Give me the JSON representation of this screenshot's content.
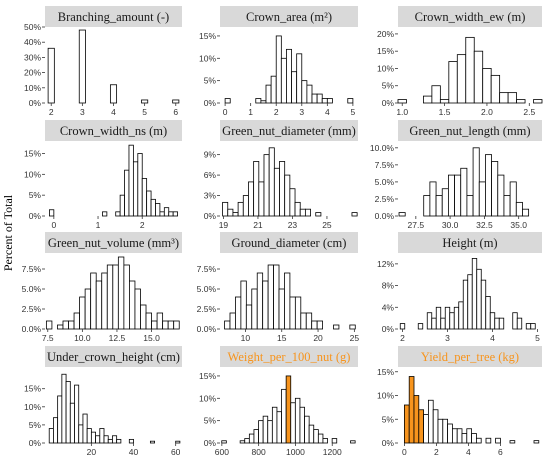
{
  "figure": {
    "ylabel": "Percent of Total",
    "panel_title_bg": "#d9d9d9",
    "bar_fill": "#ffffff",
    "bar_stroke": "#000000",
    "highlight_fill": "#f7941d",
    "highlight_title_color": "#f7941d"
  },
  "chart_data": [
    {
      "type": "bar",
      "title": "Branching_amount (-)",
      "xlim": [
        1.8,
        6.2
      ],
      "ylim": [
        0,
        50
      ],
      "xticks": [
        2,
        3,
        4,
        5,
        6
      ],
      "xtick_labels": [
        "2",
        "3",
        "4",
        "5",
        "6"
      ],
      "yticks": [
        0,
        10,
        20,
        30,
        40,
        50
      ],
      "ytick_labels": [
        "0%",
        "10%",
        "20%",
        "30%",
        "40%",
        "50%"
      ],
      "bin_width": 0.2,
      "bins": [
        {
          "x": 2,
          "y": 36
        },
        {
          "x": 3,
          "y": 48
        },
        {
          "x": 4,
          "y": 12
        },
        {
          "x": 5,
          "y": 2
        },
        {
          "x": 6,
          "y": 2
        }
      ]
    },
    {
      "type": "bar",
      "title": "Crown_area (m²)",
      "xlim": [
        -0.2,
        5.2
      ],
      "ylim": [
        0,
        17
      ],
      "xticks": [
        0,
        1,
        2,
        3,
        4,
        5
      ],
      "xtick_labels": [
        "0",
        "1",
        "2",
        "3",
        "4",
        "5"
      ],
      "yticks": [
        0,
        5,
        10,
        15
      ],
      "ytick_labels": [
        "0%",
        "5%",
        "10%",
        "15%"
      ],
      "bin_width": 0.2,
      "bins": [
        {
          "x": 0.1,
          "y": 1
        },
        {
          "x": 1.3,
          "y": 1
        },
        {
          "x": 1.5,
          "y": 0.5
        },
        {
          "x": 1.7,
          "y": 4
        },
        {
          "x": 1.9,
          "y": 6
        },
        {
          "x": 2.1,
          "y": 15
        },
        {
          "x": 2.3,
          "y": 10
        },
        {
          "x": 2.5,
          "y": 12
        },
        {
          "x": 2.7,
          "y": 7
        },
        {
          "x": 2.9,
          "y": 11
        },
        {
          "x": 3.1,
          "y": 5
        },
        {
          "x": 3.3,
          "y": 4
        },
        {
          "x": 3.5,
          "y": 2
        },
        {
          "x": 3.7,
          "y": 2
        },
        {
          "x": 3.9,
          "y": 1
        },
        {
          "x": 4.1,
          "y": 1
        },
        {
          "x": 4.9,
          "y": 1
        }
      ]
    },
    {
      "type": "bar",
      "title": "Crown_width_ew (m)",
      "xlim": [
        0.95,
        2.65
      ],
      "ylim": [
        0,
        22
      ],
      "xticks": [
        1.0,
        1.5,
        2.0,
        2.5
      ],
      "xtick_labels": [
        "1.0",
        "1.5",
        "2.0",
        "2.5"
      ],
      "yticks": [
        0,
        5,
        10,
        15,
        20
      ],
      "ytick_labels": [
        "0%",
        "5%",
        "10%",
        "15%",
        "20%"
      ],
      "bin_width": 0.1,
      "bins": [
        {
          "x": 1.0,
          "y": 1
        },
        {
          "x": 1.3,
          "y": 2
        },
        {
          "x": 1.4,
          "y": 5
        },
        {
          "x": 1.5,
          "y": 1
        },
        {
          "x": 1.6,
          "y": 12
        },
        {
          "x": 1.7,
          "y": 14
        },
        {
          "x": 1.8,
          "y": 19
        },
        {
          "x": 1.9,
          "y": 15
        },
        {
          "x": 2.0,
          "y": 10
        },
        {
          "x": 2.1,
          "y": 8
        },
        {
          "x": 2.2,
          "y": 3
        },
        {
          "x": 2.3,
          "y": 3
        },
        {
          "x": 2.4,
          "y": 1
        },
        {
          "x": 2.6,
          "y": 1
        }
      ]
    },
    {
      "type": "bar",
      "title": "Crown_width_ns (m)",
      "xlim": [
        -0.2,
        2.9
      ],
      "ylim": [
        0,
        18
      ],
      "xticks": [
        0,
        1,
        2
      ],
      "xtick_labels": [
        "0",
        "1",
        "2"
      ],
      "yticks": [
        0,
        5,
        10,
        15
      ],
      "ytick_labels": [
        "0%",
        "5%",
        "10%",
        "15%"
      ],
      "bin_width": 0.1,
      "bins": [
        {
          "x": -0.05,
          "y": 1.5
        },
        {
          "x": 1.15,
          "y": 1
        },
        {
          "x": 1.45,
          "y": 1
        },
        {
          "x": 1.55,
          "y": 5
        },
        {
          "x": 1.65,
          "y": 11
        },
        {
          "x": 1.75,
          "y": 17
        },
        {
          "x": 1.85,
          "y": 13
        },
        {
          "x": 1.95,
          "y": 15
        },
        {
          "x": 2.05,
          "y": 9
        },
        {
          "x": 2.15,
          "y": 6
        },
        {
          "x": 2.25,
          "y": 4
        },
        {
          "x": 2.35,
          "y": 3
        },
        {
          "x": 2.45,
          "y": 1
        },
        {
          "x": 2.55,
          "y": 2
        },
        {
          "x": 2.65,
          "y": 1
        },
        {
          "x": 2.75,
          "y": 1
        }
      ]
    },
    {
      "type": "bar",
      "title": "Green_nut_diameter (mm)",
      "xlim": [
        18.8,
        26.8
      ],
      "ylim": [
        0,
        11
      ],
      "xticks": [
        19,
        21,
        23,
        25
      ],
      "xtick_labels": [
        "19",
        "21",
        "23",
        "25"
      ],
      "yticks": [
        0,
        3,
        6,
        9
      ],
      "ytick_labels": [
        "0%",
        "3%",
        "6%",
        "9%"
      ],
      "bin_width": 0.3,
      "bins": [
        {
          "x": 19.1,
          "y": 2
        },
        {
          "x": 19.4,
          "y": 1
        },
        {
          "x": 19.7,
          "y": 0.5
        },
        {
          "x": 20.0,
          "y": 2
        },
        {
          "x": 20.3,
          "y": 3
        },
        {
          "x": 20.6,
          "y": 5
        },
        {
          "x": 20.9,
          "y": 8
        },
        {
          "x": 21.2,
          "y": 5
        },
        {
          "x": 21.5,
          "y": 9
        },
        {
          "x": 21.8,
          "y": 10
        },
        {
          "x": 22.1,
          "y": 7
        },
        {
          "x": 22.4,
          "y": 8
        },
        {
          "x": 22.7,
          "y": 6
        },
        {
          "x": 23.0,
          "y": 4
        },
        {
          "x": 23.3,
          "y": 2
        },
        {
          "x": 23.6,
          "y": 1
        },
        {
          "x": 23.9,
          "y": 1
        },
        {
          "x": 24.5,
          "y": 0.5
        },
        {
          "x": 26.6,
          "y": 0.5
        }
      ]
    },
    {
      "type": "bar",
      "title": "Green_nut_length (mm)",
      "xlim": [
        26.2,
        36.7
      ],
      "ylim": [
        0,
        11
      ],
      "xticks": [
        27.5,
        30.0,
        32.5,
        35.0
      ],
      "xtick_labels": [
        "27.5",
        "30.0",
        "32.5",
        "35.0"
      ],
      "yticks": [
        0,
        2.5,
        5,
        7.5,
        10
      ],
      "ytick_labels": [
        "0.0%",
        "2.5%",
        "5.0%",
        "7.5%",
        "10.0%"
      ],
      "bin_width": 0.45,
      "bins": [
        {
          "x": 26.5,
          "y": 0.5
        },
        {
          "x": 28.3,
          "y": 3
        },
        {
          "x": 28.75,
          "y": 5
        },
        {
          "x": 29.2,
          "y": 3
        },
        {
          "x": 29.65,
          "y": 4
        },
        {
          "x": 30.1,
          "y": 6
        },
        {
          "x": 30.55,
          "y": 6
        },
        {
          "x": 31.0,
          "y": 7
        },
        {
          "x": 31.45,
          "y": 3
        },
        {
          "x": 31.9,
          "y": 10
        },
        {
          "x": 32.35,
          "y": 5
        },
        {
          "x": 32.8,
          "y": 9
        },
        {
          "x": 33.25,
          "y": 8
        },
        {
          "x": 33.7,
          "y": 6
        },
        {
          "x": 34.15,
          "y": 3
        },
        {
          "x": 34.6,
          "y": 5
        },
        {
          "x": 35.05,
          "y": 2
        },
        {
          "x": 35.5,
          "y": 1
        }
      ]
    },
    {
      "type": "bar",
      "title": "Green_nut_volume (mm³)",
      "xlim": [
        7.3,
        17.2
      ],
      "ylim": [
        0,
        9.5
      ],
      "xticks": [
        7.5,
        10.0,
        12.5,
        15.0
      ],
      "xtick_labels": [
        "7.5",
        "10.0",
        "12.5",
        "15.0"
      ],
      "yticks": [
        0,
        2.5,
        5,
        7.5
      ],
      "ytick_labels": [
        "0.0%",
        "2.5%",
        "5.0%",
        "7.5%"
      ],
      "bin_width": 0.4,
      "bins": [
        {
          "x": 7.6,
          "y": 1
        },
        {
          "x": 8.4,
          "y": 0.5
        },
        {
          "x": 8.8,
          "y": 1
        },
        {
          "x": 9.2,
          "y": 1
        },
        {
          "x": 9.6,
          "y": 2
        },
        {
          "x": 10.0,
          "y": 4
        },
        {
          "x": 10.4,
          "y": 5
        },
        {
          "x": 10.8,
          "y": 7
        },
        {
          "x": 11.2,
          "y": 6
        },
        {
          "x": 11.6,
          "y": 7
        },
        {
          "x": 12.0,
          "y": 8
        },
        {
          "x": 12.4,
          "y": 8
        },
        {
          "x": 12.8,
          "y": 9
        },
        {
          "x": 13.2,
          "y": 8
        },
        {
          "x": 13.6,
          "y": 6
        },
        {
          "x": 14.0,
          "y": 5
        },
        {
          "x": 14.4,
          "y": 3
        },
        {
          "x": 14.8,
          "y": 2
        },
        {
          "x": 15.2,
          "y": 1
        },
        {
          "x": 15.6,
          "y": 2
        },
        {
          "x": 16.0,
          "y": 1
        },
        {
          "x": 16.4,
          "y": 1
        },
        {
          "x": 16.8,
          "y": 1
        }
      ]
    },
    {
      "type": "bar",
      "title": "Ground_diameter (cm)",
      "xlim": [
        6.5,
        25.5
      ],
      "ylim": [
        0,
        9.5
      ],
      "xticks": [
        10,
        15,
        20,
        25
      ],
      "xtick_labels": [
        "10",
        "15",
        "20",
        "25"
      ],
      "yticks": [
        0,
        2.5,
        5,
        7.5
      ],
      "ytick_labels": [
        "0.0%",
        "2.5%",
        "5.0%",
        "7.5%"
      ],
      "bin_width": 0.75,
      "bins": [
        {
          "x": 7.5,
          "y": 1
        },
        {
          "x": 8.25,
          "y": 2
        },
        {
          "x": 9.0,
          "y": 4
        },
        {
          "x": 9.75,
          "y": 6
        },
        {
          "x": 10.5,
          "y": 3
        },
        {
          "x": 11.25,
          "y": 5
        },
        {
          "x": 12.0,
          "y": 7
        },
        {
          "x": 12.75,
          "y": 6
        },
        {
          "x": 13.5,
          "y": 8
        },
        {
          "x": 14.25,
          "y": 8
        },
        {
          "x": 15.0,
          "y": 5
        },
        {
          "x": 15.75,
          "y": 7
        },
        {
          "x": 16.5,
          "y": 4
        },
        {
          "x": 17.25,
          "y": 4
        },
        {
          "x": 18.0,
          "y": 2
        },
        {
          "x": 18.75,
          "y": 2
        },
        {
          "x": 19.5,
          "y": 1
        },
        {
          "x": 20.25,
          "y": 1
        },
        {
          "x": 22.5,
          "y": 0.5
        },
        {
          "x": 24.75,
          "y": 0.5
        }
      ]
    },
    {
      "type": "bar",
      "title": "Height (m)",
      "xlim": [
        1.9,
        5.1
      ],
      "ylim": [
        0,
        14
      ],
      "xticks": [
        2,
        3,
        4,
        5
      ],
      "xtick_labels": [
        "2",
        "3",
        "4",
        "5"
      ],
      "yticks": [
        0,
        4,
        8,
        12
      ],
      "ytick_labels": [
        "0%",
        "4%",
        "8%",
        "12%"
      ],
      "bin_width": 0.1,
      "bins": [
        {
          "x": 2.0,
          "y": 1
        },
        {
          "x": 2.4,
          "y": 1
        },
        {
          "x": 2.6,
          "y": 3
        },
        {
          "x": 2.7,
          "y": 2
        },
        {
          "x": 2.8,
          "y": 4
        },
        {
          "x": 2.9,
          "y": 2
        },
        {
          "x": 3.0,
          "y": 4
        },
        {
          "x": 3.1,
          "y": 3
        },
        {
          "x": 3.2,
          "y": 4
        },
        {
          "x": 3.3,
          "y": 5
        },
        {
          "x": 3.4,
          "y": 9
        },
        {
          "x": 3.5,
          "y": 10
        },
        {
          "x": 3.6,
          "y": 13
        },
        {
          "x": 3.7,
          "y": 11
        },
        {
          "x": 3.8,
          "y": 9
        },
        {
          "x": 3.9,
          "y": 6
        },
        {
          "x": 4.0,
          "y": 3
        },
        {
          "x": 4.1,
          "y": 2
        },
        {
          "x": 4.2,
          "y": 2
        },
        {
          "x": 4.5,
          "y": 3
        },
        {
          "x": 4.6,
          "y": 2
        },
        {
          "x": 4.8,
          "y": 1
        },
        {
          "x": 4.9,
          "y": 1
        }
      ]
    },
    {
      "type": "bar",
      "title": "Under_crown_height (cm)",
      "xlim": [
        -2,
        63
      ],
      "ylim": [
        0,
        21
      ],
      "xticks": [
        20,
        40,
        60
      ],
      "xtick_labels": [
        "20",
        "40",
        "60"
      ],
      "yticks": [
        0,
        5,
        10,
        15
      ],
      "ytick_labels": [
        "0%",
        "5%",
        "10%",
        "15%"
      ],
      "bin_width": 2,
      "bins": [
        {
          "x": 1,
          "y": 4
        },
        {
          "x": 3,
          "y": 7
        },
        {
          "x": 5,
          "y": 13
        },
        {
          "x": 7,
          "y": 19
        },
        {
          "x": 9,
          "y": 17
        },
        {
          "x": 11,
          "y": 11
        },
        {
          "x": 13,
          "y": 16
        },
        {
          "x": 15,
          "y": 5
        },
        {
          "x": 17,
          "y": 8
        },
        {
          "x": 19,
          "y": 4
        },
        {
          "x": 21,
          "y": 3
        },
        {
          "x": 23,
          "y": 2
        },
        {
          "x": 25,
          "y": 4
        },
        {
          "x": 27,
          "y": 2
        },
        {
          "x": 29,
          "y": 1
        },
        {
          "x": 31,
          "y": 2
        },
        {
          "x": 33,
          "y": 1
        },
        {
          "x": 39,
          "y": 1
        },
        {
          "x": 49,
          "y": 0.5
        },
        {
          "x": 61,
          "y": 0.5
        }
      ]
    },
    {
      "type": "bar",
      "title": "Weight_per_100_nut (g)",
      "title_color": "#f7941d",
      "xlim": [
        590,
        1340
      ],
      "ylim": [
        0,
        17
      ],
      "xticks": [
        600,
        800,
        1000,
        1200
      ],
      "xtick_labels": [
        "600",
        "800",
        "1000",
        "1200"
      ],
      "yticks": [
        0,
        5,
        10,
        15
      ],
      "ytick_labels": [
        "0%",
        "5%",
        "10%",
        "15%"
      ],
      "bin_width": 25,
      "bins": [
        {
          "x": 612,
          "y": 0.5
        },
        {
          "x": 712,
          "y": 0.5
        },
        {
          "x": 737,
          "y": 1
        },
        {
          "x": 762,
          "y": 2
        },
        {
          "x": 787,
          "y": 3
        },
        {
          "x": 812,
          "y": 5
        },
        {
          "x": 837,
          "y": 6
        },
        {
          "x": 862,
          "y": 5
        },
        {
          "x": 887,
          "y": 8
        },
        {
          "x": 912,
          "y": 7
        },
        {
          "x": 937,
          "y": 12
        },
        {
          "x": 962,
          "y": 15,
          "highlight": true
        },
        {
          "x": 987,
          "y": 9
        },
        {
          "x": 1012,
          "y": 10
        },
        {
          "x": 1037,
          "y": 8
        },
        {
          "x": 1062,
          "y": 6
        },
        {
          "x": 1087,
          "y": 4
        },
        {
          "x": 1112,
          "y": 3
        },
        {
          "x": 1137,
          "y": 2
        },
        {
          "x": 1162,
          "y": 1
        },
        {
          "x": 1212,
          "y": 1
        },
        {
          "x": 1312,
          "y": 0.5
        }
      ]
    },
    {
      "type": "bar",
      "title": "Yield_per_tree (kg)",
      "title_color": "#f7941d",
      "xlim": [
        -0.4,
        8.6
      ],
      "ylim": [
        0,
        16
      ],
      "xticks": [
        0,
        2,
        4,
        6
      ],
      "xtick_labels": [
        "0",
        "2",
        "4",
        "6"
      ],
      "yticks": [
        0,
        5,
        10,
        15
      ],
      "ytick_labels": [
        "0%",
        "5%",
        "10%",
        "15%"
      ],
      "bin_width": 0.3,
      "bins": [
        {
          "x": 0.15,
          "y": 8,
          "highlight": true
        },
        {
          "x": 0.45,
          "y": 14,
          "highlight": true
        },
        {
          "x": 0.75,
          "y": 10,
          "highlight": true
        },
        {
          "x": 1.05,
          "y": 7,
          "highlight": true
        },
        {
          "x": 1.35,
          "y": 6
        },
        {
          "x": 1.65,
          "y": 9
        },
        {
          "x": 1.95,
          "y": 7
        },
        {
          "x": 2.25,
          "y": 5
        },
        {
          "x": 2.55,
          "y": 5
        },
        {
          "x": 2.85,
          "y": 4
        },
        {
          "x": 3.15,
          "y": 3
        },
        {
          "x": 3.45,
          "y": 3
        },
        {
          "x": 3.75,
          "y": 2
        },
        {
          "x": 4.05,
          "y": 3
        },
        {
          "x": 4.35,
          "y": 2
        },
        {
          "x": 4.65,
          "y": 1
        },
        {
          "x": 5.25,
          "y": 1
        },
        {
          "x": 5.85,
          "y": 1
        },
        {
          "x": 6.75,
          "y": 0.5
        },
        {
          "x": 8.25,
          "y": 0.5
        }
      ]
    }
  ]
}
